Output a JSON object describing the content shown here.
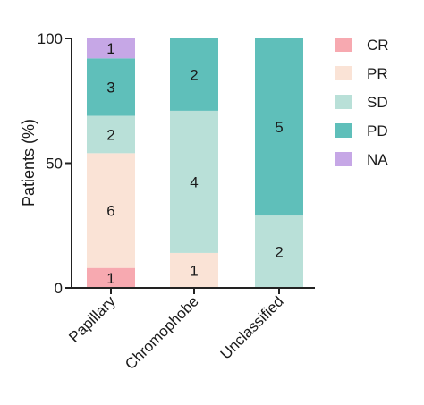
{
  "chart_data": {
    "type": "bar",
    "stacked": true,
    "title": "",
    "xlabel": "",
    "ylabel": "Patients (%)",
    "ylim": [
      0,
      100
    ],
    "yticks": [
      "0",
      "50",
      "100"
    ],
    "categories": [
      "Papillary",
      "Chromophobe",
      "Unclassified"
    ],
    "series": [
      {
        "name": "CR",
        "color": "#f7a9b0",
        "values": [
          8,
          0,
          0
        ],
        "counts": [
          "1",
          "",
          ""
        ]
      },
      {
        "name": "PR",
        "color": "#fae3d6",
        "values": [
          46,
          14,
          0
        ],
        "counts": [
          "6",
          "1",
          ""
        ]
      },
      {
        "name": "SD",
        "color": "#b9e0d8",
        "values": [
          15,
          57,
          29
        ],
        "counts": [
          "2",
          "4",
          "2"
        ]
      },
      {
        "name": "PD",
        "color": "#5fbfba",
        "values": [
          23,
          29,
          71
        ],
        "counts": [
          "3",
          "2",
          "5"
        ]
      },
      {
        "name": "NA",
        "color": "#c6a7e6",
        "values": [
          8,
          0,
          0
        ],
        "counts": [
          "1",
          "",
          ""
        ]
      }
    ],
    "legend_position": "right",
    "grid": false
  }
}
